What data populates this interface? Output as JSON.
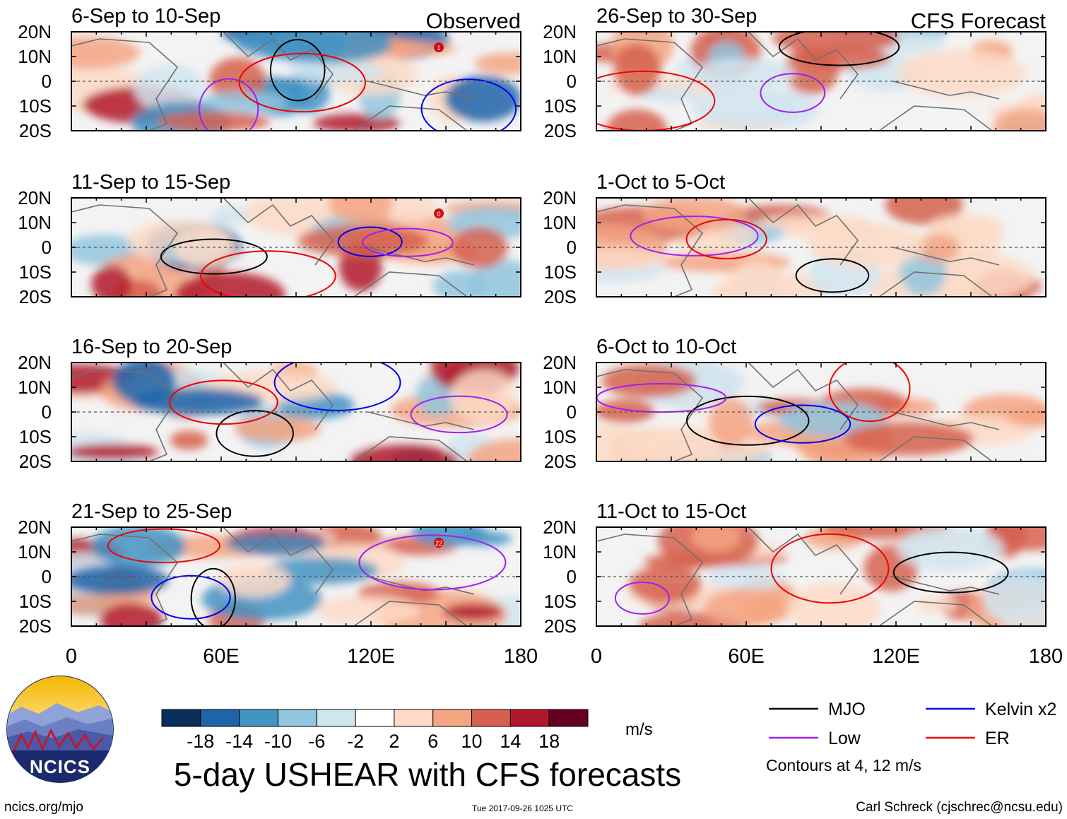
{
  "chart_data": {
    "type": "heatmap",
    "title": "5-day USHEAR with CFS forecasts",
    "column_headers": [
      "Observed",
      "CFS Forecast"
    ],
    "variable": "USHEAR",
    "units": "m/s",
    "colorbar": {
      "labels": [
        "-18",
        "-14",
        "-10",
        "-6",
        "-2",
        "2",
        "6",
        "10",
        "14",
        "18"
      ],
      "colors": [
        "#0b2f5b",
        "#1f63a8",
        "#4393c3",
        "#92c5de",
        "#d1e5f0",
        "#ffffff",
        "#fddbc7",
        "#f4a582",
        "#d6604d",
        "#b2182b",
        "#67001f"
      ]
    },
    "y_ticks": [
      "20N",
      "10N",
      "0",
      "10S",
      "20S"
    ],
    "x_ticks": [
      "0",
      "60E",
      "120E",
      "180"
    ],
    "xlim": [
      0,
      180
    ],
    "ylim": [
      -20,
      20
    ],
    "panels": [
      {
        "label": "6-Sep to 10-Sep",
        "column": "Observed",
        "storms": [
          "1"
        ]
      },
      {
        "label": "11-Sep to 15-Sep",
        "column": "Observed",
        "storms": [
          "0"
        ]
      },
      {
        "label": "16-Sep to 20-Sep",
        "column": "Observed",
        "storms": []
      },
      {
        "label": "21-Sep to 25-Sep",
        "column": "Observed",
        "storms": [
          "22"
        ]
      },
      {
        "label": "26-Sep to 30-Sep",
        "column": "CFS Forecast",
        "storms": []
      },
      {
        "label": "1-Oct to 5-Oct",
        "column": "CFS Forecast",
        "storms": []
      },
      {
        "label": "6-Oct to 10-Oct",
        "column": "CFS Forecast",
        "storms": []
      },
      {
        "label": "11-Oct to 15-Oct",
        "column": "CFS Forecast",
        "storms": []
      }
    ],
    "legend": [
      {
        "name": "MJO",
        "color": "#000000"
      },
      {
        "name": "Kelvin x2",
        "color": "#0000ee"
      },
      {
        "name": "Low",
        "color": "#a020f0"
      },
      {
        "name": "ER",
        "color": "#ee0000"
      }
    ],
    "contour_note": "Contours at 4, 12 m/s"
  },
  "logo": {
    "text": "NCICS"
  },
  "footer": {
    "url": "ncics.org/mjo",
    "timestamp": "Tue 2017-09-26 1025 UTC",
    "author": "Carl Schreck (cjschrec@ncsu.edu)"
  }
}
